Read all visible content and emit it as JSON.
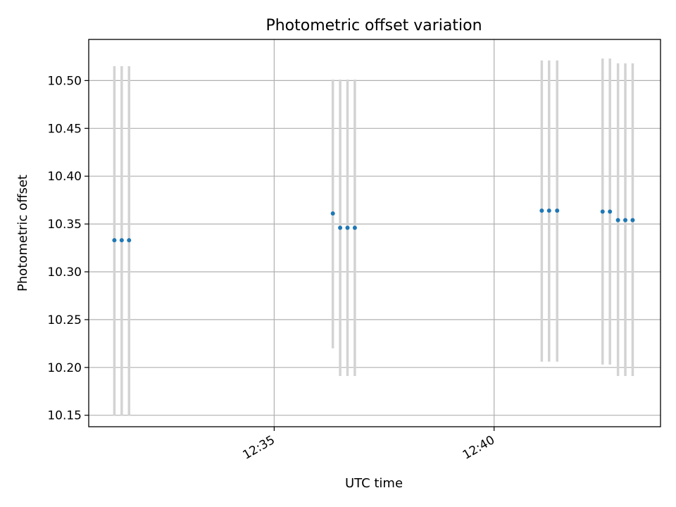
{
  "chart_data": {
    "type": "scatter",
    "title": "Photometric offset variation",
    "xlabel": "UTC time",
    "ylabel": "Photometric offset",
    "xlim": [
      "12:30:47",
      "12:43:47"
    ],
    "ylim": [
      10.138,
      10.543
    ],
    "grid": true,
    "x_ticks": [
      "12:35",
      "12:40"
    ],
    "y_ticks": [
      "10.15",
      "10.20",
      "10.25",
      "10.30",
      "10.35",
      "10.40",
      "10.45",
      "10.50"
    ],
    "point_color": "#1f77b4",
    "errorbar_color": "#d3d3d3",
    "points": [
      {
        "t": "12:31:22",
        "y": 10.333,
        "lo": 10.15,
        "hi": 10.515
      },
      {
        "t": "12:31:32",
        "y": 10.333,
        "lo": 10.15,
        "hi": 10.515
      },
      {
        "t": "12:31:42",
        "y": 10.333,
        "lo": 10.15,
        "hi": 10.515
      },
      {
        "t": "12:36:20",
        "y": 10.361,
        "lo": 10.22,
        "hi": 10.501
      },
      {
        "t": "12:36:30",
        "y": 10.346,
        "lo": 10.191,
        "hi": 10.501
      },
      {
        "t": "12:36:40",
        "y": 10.346,
        "lo": 10.191,
        "hi": 10.501
      },
      {
        "t": "12:36:50",
        "y": 10.346,
        "lo": 10.191,
        "hi": 10.501
      },
      {
        "t": "12:41:05",
        "y": 10.364,
        "lo": 10.206,
        "hi": 10.521
      },
      {
        "t": "12:41:15",
        "y": 10.364,
        "lo": 10.206,
        "hi": 10.521
      },
      {
        "t": "12:41:26",
        "y": 10.364,
        "lo": 10.206,
        "hi": 10.521
      },
      {
        "t": "12:42:28",
        "y": 10.363,
        "lo": 10.203,
        "hi": 10.523
      },
      {
        "t": "12:42:38",
        "y": 10.363,
        "lo": 10.203,
        "hi": 10.523
      },
      {
        "t": "12:42:49",
        "y": 10.354,
        "lo": 10.191,
        "hi": 10.518
      },
      {
        "t": "12:42:59",
        "y": 10.354,
        "lo": 10.191,
        "hi": 10.518
      },
      {
        "t": "12:43:09",
        "y": 10.354,
        "lo": 10.191,
        "hi": 10.518
      }
    ]
  }
}
